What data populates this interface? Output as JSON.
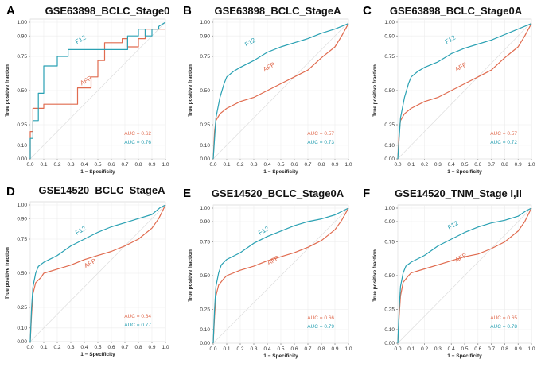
{
  "figure": {
    "colors": {
      "F12": "#2aa1b3",
      "AFP": "#e06b4f"
    },
    "x_label": "1 − Specificity",
    "y_label": "True positive fraction",
    "x_ticks": [
      0.0,
      0.1,
      0.2,
      0.3,
      0.4,
      0.5,
      0.6,
      0.7,
      0.8,
      0.9,
      1.0
    ],
    "x_tick_labels": [
      "0.0",
      "0.1",
      "0.2",
      "0.3",
      "0.4",
      "0.5",
      "0.6",
      "0.7",
      "0.8",
      "0.9",
      "1.0"
    ],
    "y_ticks": [
      0.0,
      0.1,
      0.25,
      0.5,
      0.75,
      0.9,
      1.0
    ],
    "y_tick_labels": [
      "0.00",
      "0.10",
      "0.25",
      "0.50",
      "0.75",
      "0.90",
      "1.00"
    ]
  },
  "chart_data": [
    {
      "type": "line",
      "panel": "A",
      "title": "GSE63898_BCLC_Stage0",
      "xlabel": "1 − Specificity",
      "ylabel": "True positive fraction",
      "xlim": [
        0,
        1
      ],
      "ylim": [
        0,
        1
      ],
      "series": [
        {
          "name": "AFP",
          "auc_label": "AUC = 0.62",
          "step": true,
          "x": [
            0,
            0,
            0.02,
            0.02,
            0.1,
            0.1,
            0.35,
            0.35,
            0.45,
            0.45,
            0.5,
            0.5,
            0.55,
            0.55,
            0.68,
            0.68,
            0.72,
            0.72,
            0.8,
            0.8,
            0.85,
            0.85,
            1.0
          ],
          "y": [
            0,
            0.2,
            0.2,
            0.37,
            0.37,
            0.4,
            0.4,
            0.52,
            0.52,
            0.6,
            0.6,
            0.72,
            0.72,
            0.85,
            0.85,
            0.88,
            0.88,
            0.82,
            0.82,
            0.88,
            0.88,
            0.95,
            0.95
          ]
        },
        {
          "name": "F12",
          "auc_label": "AUC = 0.76",
          "step": true,
          "x": [
            0,
            0,
            0.02,
            0.02,
            0.06,
            0.06,
            0.1,
            0.1,
            0.2,
            0.2,
            0.28,
            0.28,
            0.72,
            0.72,
            0.8,
            0.8,
            0.85,
            0.85,
            0.9,
            0.9,
            0.95,
            0.95,
            1.0
          ],
          "y": [
            0,
            0.15,
            0.15,
            0.28,
            0.28,
            0.48,
            0.48,
            0.68,
            0.68,
            0.75,
            0.75,
            0.8,
            0.8,
            0.9,
            0.9,
            0.95,
            0.95,
            0.9,
            0.9,
            0.95,
            0.95,
            0.97,
            1.0
          ]
        }
      ]
    },
    {
      "type": "line",
      "panel": "B",
      "title": "GSE63898_BCLC_StageA",
      "xlabel": "1 − Specificity",
      "ylabel": "True positive fraction",
      "xlim": [
        0,
        1
      ],
      "ylim": [
        0,
        1
      ],
      "series": [
        {
          "name": "AFP",
          "auc_label": "AUC = 0.57",
          "x": [
            0,
            0.01,
            0.02,
            0.05,
            0.1,
            0.2,
            0.3,
            0.4,
            0.5,
            0.6,
            0.7,
            0.8,
            0.9,
            0.95,
            1.0
          ],
          "y": [
            0,
            0.2,
            0.28,
            0.33,
            0.37,
            0.42,
            0.45,
            0.5,
            0.55,
            0.6,
            0.65,
            0.74,
            0.82,
            0.9,
            0.99
          ]
        },
        {
          "name": "F12",
          "auc_label": "AUC = 0.73",
          "x": [
            0,
            0.01,
            0.02,
            0.05,
            0.08,
            0.1,
            0.15,
            0.2,
            0.3,
            0.4,
            0.5,
            0.6,
            0.7,
            0.8,
            0.9,
            1.0
          ],
          "y": [
            0,
            0.15,
            0.3,
            0.45,
            0.55,
            0.6,
            0.64,
            0.67,
            0.72,
            0.78,
            0.82,
            0.85,
            0.88,
            0.92,
            0.95,
            0.99
          ]
        }
      ]
    },
    {
      "type": "line",
      "panel": "C",
      "title": "GSE63898_BCLC_Stage0A",
      "xlabel": "1 − Specificity",
      "ylabel": "True positive fraction",
      "xlim": [
        0,
        1
      ],
      "ylim": [
        0,
        1
      ],
      "series": [
        {
          "name": "AFP",
          "auc_label": "AUC = 0.57",
          "x": [
            0,
            0.01,
            0.02,
            0.05,
            0.1,
            0.2,
            0.3,
            0.4,
            0.5,
            0.6,
            0.7,
            0.8,
            0.9,
            0.95,
            1.0
          ],
          "y": [
            0,
            0.2,
            0.28,
            0.33,
            0.37,
            0.42,
            0.45,
            0.5,
            0.55,
            0.6,
            0.65,
            0.74,
            0.82,
            0.9,
            0.99
          ]
        },
        {
          "name": "F12",
          "auc_label": "AUC = 0.72",
          "x": [
            0,
            0.01,
            0.02,
            0.05,
            0.08,
            0.1,
            0.15,
            0.2,
            0.3,
            0.4,
            0.5,
            0.6,
            0.7,
            0.8,
            0.9,
            1.0
          ],
          "y": [
            0,
            0.15,
            0.3,
            0.45,
            0.55,
            0.6,
            0.64,
            0.67,
            0.71,
            0.77,
            0.81,
            0.84,
            0.87,
            0.91,
            0.95,
            0.99
          ]
        }
      ]
    },
    {
      "type": "line",
      "panel": "D",
      "title": "GSE14520_BCLC_StageA",
      "xlabel": "1 − Specificity",
      "ylabel": "True positive fraction",
      "xlim": [
        0,
        1
      ],
      "ylim": [
        0,
        1
      ],
      "series": [
        {
          "name": "AFP",
          "auc_label": "AUC = 0.64",
          "x": [
            0,
            0.01,
            0.02,
            0.04,
            0.08,
            0.1,
            0.2,
            0.3,
            0.4,
            0.5,
            0.6,
            0.7,
            0.8,
            0.9,
            0.95,
            1.0
          ],
          "y": [
            0,
            0.2,
            0.35,
            0.43,
            0.47,
            0.5,
            0.53,
            0.56,
            0.6,
            0.63,
            0.66,
            0.7,
            0.75,
            0.83,
            0.9,
            1.0
          ]
        },
        {
          "name": "F12",
          "auc_label": "AUC = 0.77",
          "x": [
            0,
            0.01,
            0.02,
            0.04,
            0.06,
            0.1,
            0.2,
            0.3,
            0.4,
            0.5,
            0.6,
            0.7,
            0.8,
            0.9,
            0.96,
            1.0
          ],
          "y": [
            0,
            0.25,
            0.4,
            0.5,
            0.55,
            0.58,
            0.63,
            0.7,
            0.75,
            0.8,
            0.84,
            0.87,
            0.9,
            0.93,
            0.98,
            1.0
          ]
        }
      ]
    },
    {
      "type": "line",
      "panel": "E",
      "title": "GSE14520_BCLC_Stage0A",
      "xlabel": "1 − Specificity",
      "ylabel": "True positive fraction",
      "xlim": [
        0,
        1
      ],
      "ylim": [
        0,
        1
      ],
      "series": [
        {
          "name": "AFP",
          "auc_label": "AUC = 0.66",
          "x": [
            0,
            0.01,
            0.02,
            0.04,
            0.08,
            0.1,
            0.2,
            0.3,
            0.4,
            0.5,
            0.6,
            0.7,
            0.8,
            0.9,
            0.95,
            1.0
          ],
          "y": [
            0,
            0.2,
            0.35,
            0.43,
            0.48,
            0.5,
            0.54,
            0.57,
            0.61,
            0.64,
            0.67,
            0.71,
            0.76,
            0.84,
            0.91,
            1.0
          ]
        },
        {
          "name": "F12",
          "auc_label": "AUC = 0.79",
          "x": [
            0,
            0.01,
            0.02,
            0.04,
            0.06,
            0.1,
            0.2,
            0.3,
            0.4,
            0.5,
            0.6,
            0.7,
            0.8,
            0.9,
            0.96,
            1.0
          ],
          "y": [
            0,
            0.25,
            0.42,
            0.52,
            0.58,
            0.62,
            0.67,
            0.74,
            0.79,
            0.83,
            0.87,
            0.9,
            0.92,
            0.95,
            0.98,
            1.0
          ]
        }
      ]
    },
    {
      "type": "line",
      "panel": "F",
      "title": "GSE14520_TNM_Stage I,II",
      "xlabel": "1 − Specificity",
      "ylabel": "True positive fraction",
      "xlim": [
        0,
        1
      ],
      "ylim": [
        0,
        1
      ],
      "series": [
        {
          "name": "AFP",
          "auc_label": "AUC = 0.65",
          "x": [
            0,
            0.01,
            0.02,
            0.04,
            0.08,
            0.1,
            0.2,
            0.3,
            0.4,
            0.5,
            0.6,
            0.7,
            0.8,
            0.9,
            0.95,
            1.0
          ],
          "y": [
            0,
            0.2,
            0.35,
            0.45,
            0.5,
            0.52,
            0.55,
            0.58,
            0.61,
            0.64,
            0.66,
            0.7,
            0.75,
            0.83,
            0.9,
            1.0
          ]
        },
        {
          "name": "F12",
          "auc_label": "AUC = 0.78",
          "x": [
            0,
            0.01,
            0.02,
            0.04,
            0.06,
            0.1,
            0.2,
            0.3,
            0.4,
            0.5,
            0.6,
            0.7,
            0.8,
            0.9,
            0.96,
            1.0
          ],
          "y": [
            0,
            0.25,
            0.42,
            0.52,
            0.57,
            0.6,
            0.65,
            0.72,
            0.77,
            0.82,
            0.86,
            0.89,
            0.91,
            0.94,
            0.98,
            1.0
          ]
        }
      ]
    }
  ]
}
